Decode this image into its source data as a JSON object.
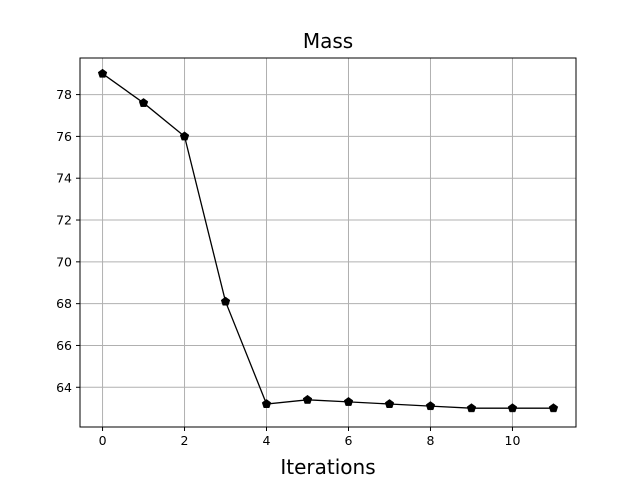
{
  "chart_data": {
    "type": "line",
    "title": "Mass",
    "xlabel": "Iterations",
    "ylabel": "",
    "x": [
      0,
      1,
      2,
      3,
      4,
      5,
      6,
      7,
      8,
      9,
      10,
      11
    ],
    "series": [
      {
        "values": [
          79.0,
          77.6,
          76.0,
          68.1,
          63.2,
          63.4,
          63.3,
          63.2,
          63.1,
          63.0,
          63.0,
          63.0
        ],
        "color": "#000000",
        "marker": "pentagon"
      }
    ],
    "xlim": [
      -0.55,
      11.55
    ],
    "ylim": [
      62.1,
      79.75
    ],
    "xticks": [
      0,
      2,
      4,
      6,
      8,
      10
    ],
    "yticks": [
      64,
      66,
      68,
      70,
      72,
      74,
      76,
      78
    ],
    "grid": true,
    "legend": "none"
  }
}
